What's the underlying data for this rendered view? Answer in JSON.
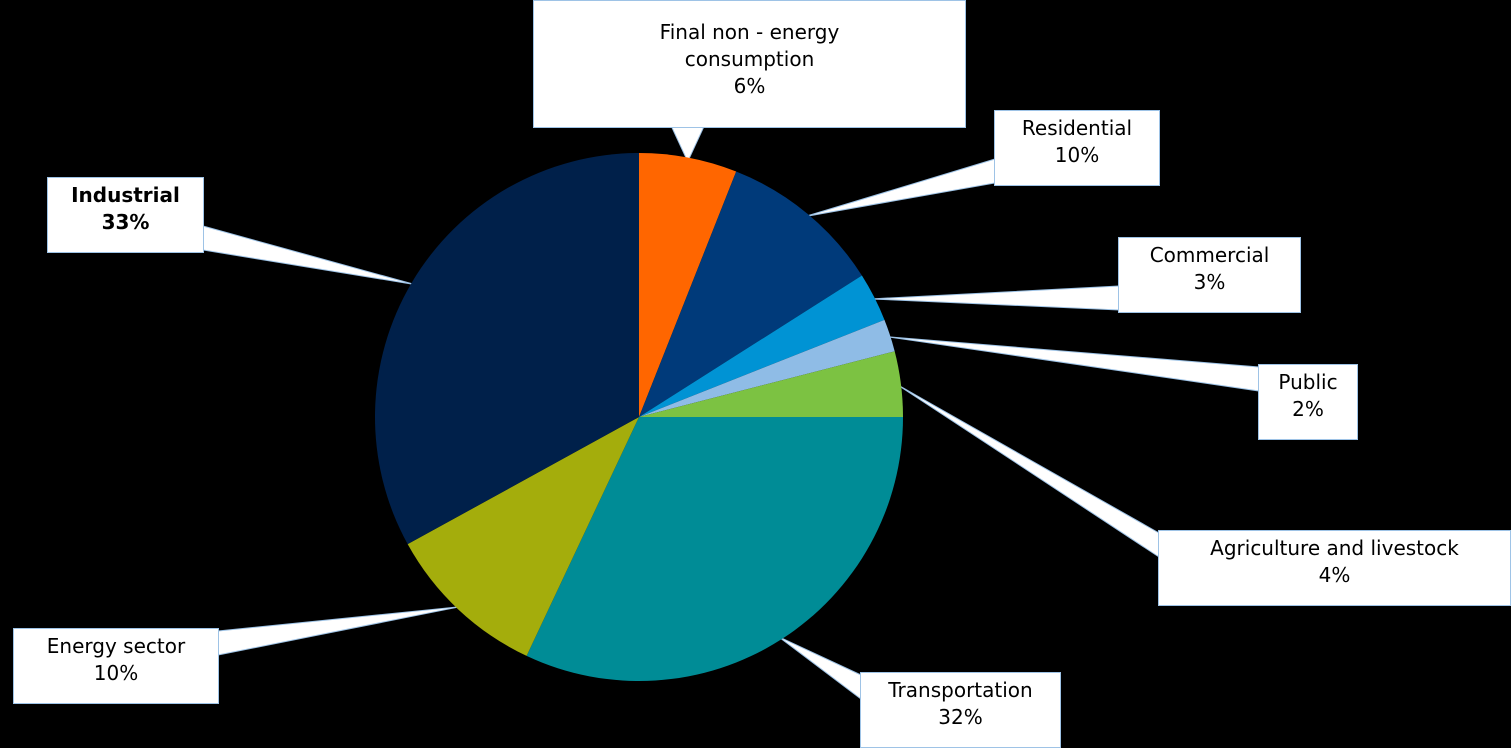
{
  "chart_data": {
    "type": "pie",
    "title": "",
    "start_angle_deg": 0,
    "direction": "clockwise",
    "legend": "none",
    "slices": [
      {
        "name": "Final non - energy consumption",
        "label_lines": [
          "Final non - energy",
          "consumption"
        ],
        "value": 6,
        "percent_label": "6%",
        "color": "#ff6600",
        "bold": false
      },
      {
        "name": "Residential",
        "label_lines": [
          "Residential"
        ],
        "value": 10,
        "percent_label": "10%",
        "color": "#003a7a",
        "bold": false
      },
      {
        "name": "Commercial",
        "label_lines": [
          "Commercial"
        ],
        "value": 3,
        "percent_label": "3%",
        "color": "#0093d4",
        "bold": false
      },
      {
        "name": "Public",
        "label_lines": [
          "Public"
        ],
        "value": 2,
        "percent_label": "2%",
        "color": "#8fbce6",
        "bold": false
      },
      {
        "name": "Agriculture and livestock",
        "label_lines": [
          "Agriculture and livestock"
        ],
        "value": 4,
        "percent_label": "4%",
        "color": "#7cc242",
        "bold": false
      },
      {
        "name": "Transportation",
        "label_lines": [
          "Transportation"
        ],
        "value": 32,
        "percent_label": "32%",
        "color": "#008c96",
        "bold": false
      },
      {
        "name": "Energy sector",
        "label_lines": [
          "Energy sector"
        ],
        "value": 10,
        "percent_label": "10%",
        "color": "#a4ad0c",
        "bold": false
      },
      {
        "name": "Industrial",
        "label_lines": [
          "Industrial"
        ],
        "value": 33,
        "percent_label": "33%",
        "color": "#00204a",
        "bold": true
      }
    ]
  }
}
